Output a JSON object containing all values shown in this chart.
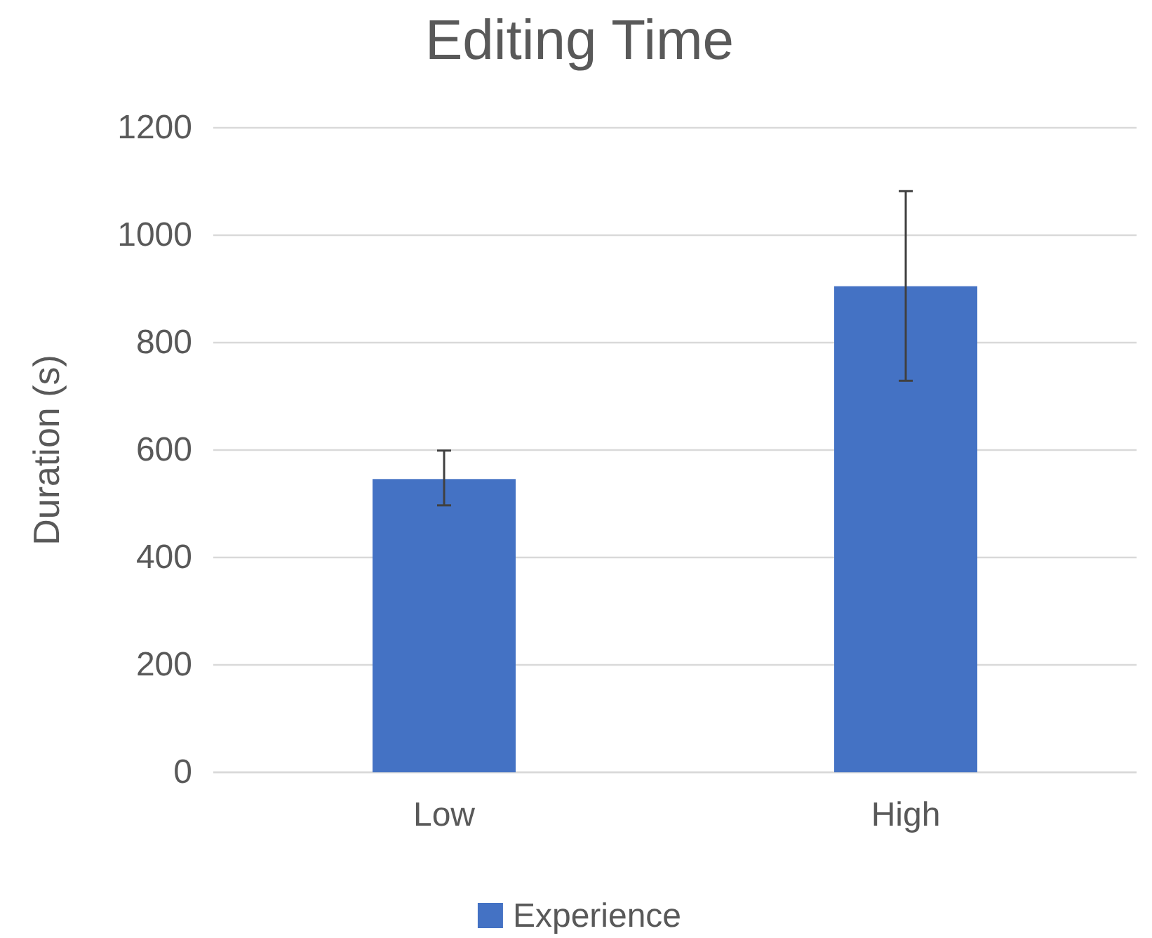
{
  "chart_data": {
    "type": "bar",
    "title": "Editing Time",
    "ylabel": "Duration (s)",
    "categories": [
      "Low",
      "High"
    ],
    "series": [
      {
        "name": "Experience",
        "color": "#4472c4",
        "values": [
          546,
          905
        ],
        "errors": [
          [
            497,
            599
          ],
          [
            729,
            1082
          ]
        ]
      }
    ],
    "ylim": [
      0,
      1200
    ],
    "yticks": [
      0,
      200,
      400,
      600,
      800,
      1000,
      1200
    ],
    "grid": "y",
    "legend": "bottom"
  }
}
